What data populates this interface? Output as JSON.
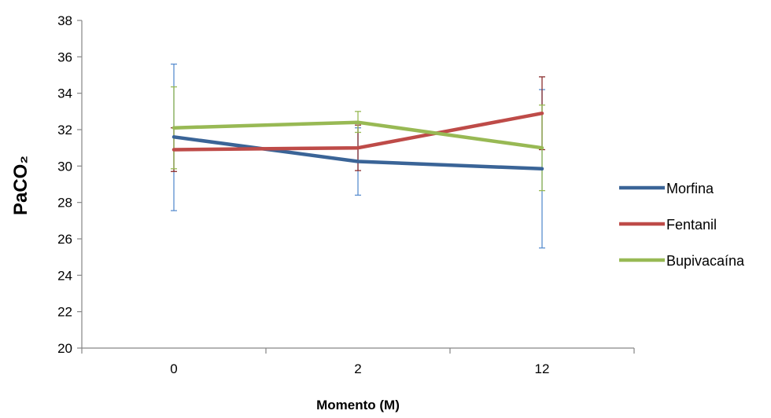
{
  "chart_data": {
    "type": "line",
    "title": "",
    "xlabel": "Momento (M)",
    "ylabel": "PaCO₂",
    "categories": [
      "0",
      "2",
      "12"
    ],
    "ylim": [
      20,
      38
    ],
    "yticks": [
      20,
      22,
      24,
      26,
      28,
      30,
      32,
      34,
      36,
      38
    ],
    "grid": false,
    "legend_position": "right",
    "series": [
      {
        "name": "Morfina",
        "color": "#3A6497",
        "error_color": "#5B8FD0",
        "values": [
          31.6,
          30.25,
          29.85
        ],
        "error_low": [
          27.55,
          28.4,
          25.5
        ],
        "error_high": [
          35.6,
          32.1,
          34.2
        ]
      },
      {
        "name": "Fentanil",
        "color": "#BE4B48",
        "error_color": "#8B2F2F",
        "values": [
          30.9,
          31.0,
          32.9
        ],
        "error_low": [
          29.7,
          29.75,
          30.9
        ],
        "error_high": [
          32.1,
          32.25,
          34.9
        ]
      },
      {
        "name": "Bupivacaína",
        "color": "#98B954",
        "error_color": "#98B954",
        "values": [
          32.1,
          32.4,
          31.0
        ],
        "error_low": [
          29.85,
          31.85,
          28.65
        ],
        "error_high": [
          34.35,
          33.0,
          33.35
        ]
      }
    ]
  }
}
